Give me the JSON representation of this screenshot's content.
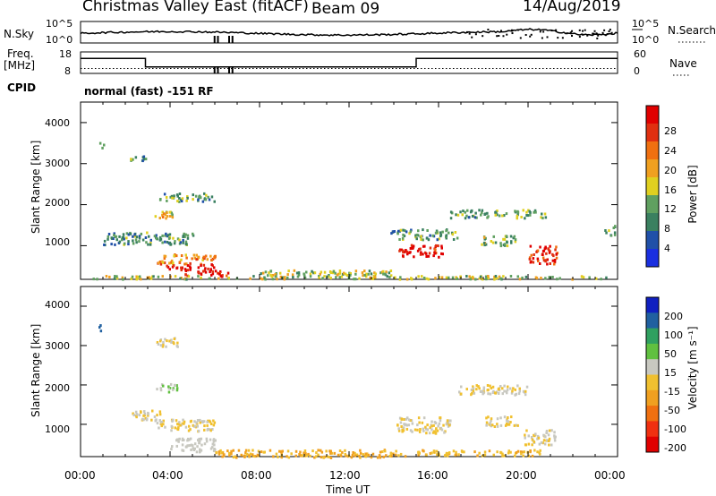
{
  "header": {
    "station": "Christmas Valley East (fitACF)",
    "beam": "Beam 09",
    "date": "14/Aug/2019"
  },
  "labels": {
    "nsky": "N.Sky",
    "nsearch": "N.Search",
    "freq": "Freq.",
    "freq_unit": "[MHz]",
    "nave": "Nave",
    "cpid": "CPID",
    "cpid_value": "normal (fast) -151 RF",
    "y_label": "Slant Range [km]",
    "x_label": "Time UT"
  },
  "noise_panel": {
    "left_ticks": [
      "10^5",
      "10^0"
    ],
    "right_ticks": [
      "10^5",
      "10^0"
    ]
  },
  "freq_panel": {
    "left_ticks": [
      "18",
      "8"
    ],
    "right_ticks": [
      "60",
      "0"
    ]
  },
  "time_ticks": [
    "00:00",
    "04:00",
    "08:00",
    "12:00",
    "16:00",
    "20:00",
    "00:00"
  ],
  "range_ticks": [
    "1000",
    "2000",
    "3000",
    "4000"
  ],
  "power_colorbar": {
    "label": "Power [dB]",
    "ticks": [
      "4",
      "8",
      "12",
      "16",
      "20",
      "24",
      "28"
    ],
    "colors": [
      "#1a2fe0",
      "#2050a8",
      "#3a8060",
      "#60a060",
      "#e0d020",
      "#f0a020",
      "#f07010",
      "#e03010",
      "#e00000"
    ]
  },
  "velocity_colorbar": {
    "label": "Velocity [m s⁻¹]",
    "ticks": [
      "200",
      "100",
      "50",
      "15",
      "-15",
      "-50",
      "-100",
      "-200"
    ],
    "colors": [
      "#1020c0",
      "#2060a0",
      "#30a060",
      "#60c040",
      "#c8c8c0",
      "#f0c030",
      "#f0a020",
      "#f07010",
      "#f03010",
      "#e00000"
    ]
  },
  "chart_data": {
    "type": "heatmap",
    "title": "Christmas Valley East (fitACF) Beam 09 14/Aug/2019",
    "xlabel": "Time UT",
    "ylabel": "Slant Range [km]",
    "xlim": [
      "00:00",
      "24:00"
    ],
    "ylim": [
      180,
      4500
    ],
    "power_scale": [
      0,
      30
    ],
    "velocity_scale": [
      -250,
      250
    ],
    "frequency_mhz": [
      {
        "t_start": 0,
        "t_end": 2.9,
        "freq": 15
      },
      {
        "t_start": 2.9,
        "t_end": 15.0,
        "freq": 11
      },
      {
        "t_start": 15.0,
        "t_end": 24,
        "freq": 15
      }
    ],
    "power_patches": [
      {
        "t": 0.8,
        "r": 3450,
        "dt": 0.2,
        "dr": 200,
        "p": 10
      },
      {
        "t": 2.0,
        "r": 3150,
        "dt": 0.9,
        "dr": 150,
        "p": 10
      },
      {
        "t": 3.3,
        "r": 1800,
        "dt": 0.8,
        "dr": 250,
        "p": 18
      },
      {
        "t": 3.5,
        "r": 2200,
        "dt": 2.5,
        "dr": 200,
        "p": 10
      },
      {
        "t": 3.4,
        "r": 700,
        "dt": 2.6,
        "dr": 250,
        "p": 20
      },
      {
        "t": 3.8,
        "r": 500,
        "dt": 2.2,
        "dr": 150,
        "p": 28
      },
      {
        "t": 4.6,
        "r": 350,
        "dt": 2.0,
        "dr": 150,
        "p": 28
      },
      {
        "t": 1.0,
        "r": 1200,
        "dt": 4.0,
        "dr": 300,
        "p": 9
      },
      {
        "t": 8.0,
        "r": 350,
        "dt": 6.0,
        "dr": 150,
        "p": 14
      },
      {
        "t": 14.2,
        "r": 900,
        "dt": 2.0,
        "dr": 300,
        "p": 28
      },
      {
        "t": 13.8,
        "r": 1300,
        "dt": 3.0,
        "dr": 250,
        "p": 10
      },
      {
        "t": 16.5,
        "r": 1800,
        "dt": 2.5,
        "dr": 200,
        "p": 10
      },
      {
        "t": 17.8,
        "r": 1150,
        "dt": 1.6,
        "dr": 250,
        "p": 12
      },
      {
        "t": 19.3,
        "r": 1800,
        "dt": 1.5,
        "dr": 200,
        "p": 12
      },
      {
        "t": 20.0,
        "r": 800,
        "dt": 1.3,
        "dr": 450,
        "p": 26
      },
      {
        "t": 23.4,
        "r": 1400,
        "dt": 0.5,
        "dr": 250,
        "p": 10
      },
      {
        "t": 0.5,
        "r": 250,
        "dt": 23.0,
        "dr": 80,
        "p": 14
      }
    ],
    "velocity_patches": [
      {
        "t": 0.8,
        "r": 3450,
        "dt": 0.2,
        "dr": 200,
        "v": 150
      },
      {
        "t": 3.3,
        "r": 3100,
        "dt": 1.0,
        "dr": 250,
        "v": 0
      },
      {
        "t": 3.3,
        "r": 1950,
        "dt": 1.0,
        "dr": 200,
        "v": 45
      },
      {
        "t": 3.3,
        "r": 1000,
        "dt": 2.7,
        "dr": 300,
        "v": 0
      },
      {
        "t": 4.0,
        "r": 500,
        "dt": 2.0,
        "dr": 350,
        "v": 30
      },
      {
        "t": 2.2,
        "r": 1250,
        "dt": 1.5,
        "dr": 250,
        "v": 0
      },
      {
        "t": 6.0,
        "r": 280,
        "dt": 8.5,
        "dr": 200,
        "v": -55
      },
      {
        "t": 14.0,
        "r": 1000,
        "dt": 2.5,
        "dr": 400,
        "v": 0
      },
      {
        "t": 16.8,
        "r": 1900,
        "dt": 3.2,
        "dr": 250,
        "v": 0
      },
      {
        "t": 18.0,
        "r": 1100,
        "dt": 1.5,
        "dr": 250,
        "v": 0
      },
      {
        "t": 19.8,
        "r": 700,
        "dt": 1.4,
        "dr": 400,
        "v": 0
      },
      {
        "t": 15.0,
        "r": 300,
        "dt": 5.5,
        "dr": 150,
        "v": -40
      }
    ]
  }
}
